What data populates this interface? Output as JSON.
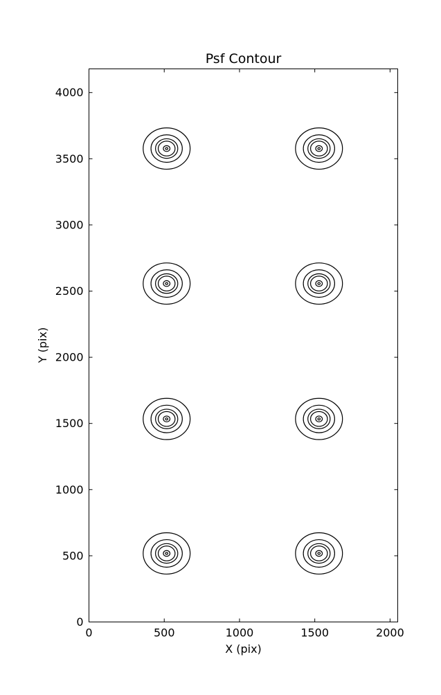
{
  "chart_data": {
    "type": "contour",
    "title": "Psf Contour",
    "xlabel": "X (pix)",
    "ylabel": "Y (pix)",
    "xlim": [
      0,
      2051
    ],
    "ylim": [
      0,
      4179
    ],
    "xticks": [
      0,
      500,
      1000,
      1500,
      2000
    ],
    "yticks": [
      0,
      500,
      1000,
      1500,
      2000,
      2500,
      3000,
      3500,
      4000
    ],
    "grid": false,
    "legend": null,
    "line_color": "#000000",
    "background_color": "#ffffff",
    "tick_direction": "in",
    "psf_centers": [
      {
        "x": 516,
        "y": 3577
      },
      {
        "x": 1528,
        "y": 3577
      },
      {
        "x": 516,
        "y": 2557
      },
      {
        "x": 1528,
        "y": 2557
      },
      {
        "x": 516,
        "y": 1534
      },
      {
        "x": 1528,
        "y": 1534
      },
      {
        "x": 516,
        "y": 518
      },
      {
        "x": 1528,
        "y": 518
      }
    ],
    "contour_ring_radii": [
      156,
      104,
      74,
      56,
      22,
      8
    ]
  }
}
